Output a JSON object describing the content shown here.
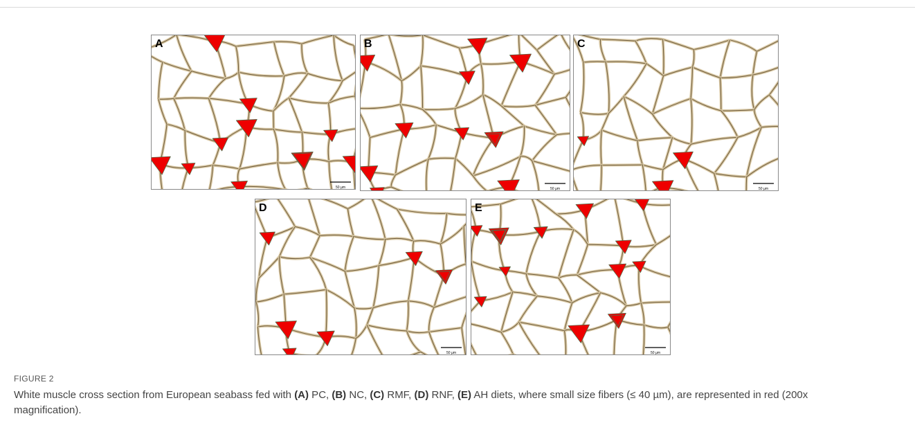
{
  "figure": {
    "panels": [
      {
        "label": "A",
        "scale": "50 µm"
      },
      {
        "label": "B",
        "scale": "50 µm"
      },
      {
        "label": "C",
        "scale": "50 µm"
      },
      {
        "label": "D",
        "scale": "50 µm"
      },
      {
        "label": "E",
        "scale": "50 µm"
      }
    ],
    "number": "FIGURE 2",
    "caption": [
      "White muscle cross section from European seabass fed with ",
      "(A)",
      " PC, ",
      "(B)",
      " NC, ",
      "(C)",
      " RMF, ",
      "(D)",
      " RNF, ",
      "(E)",
      " AH diets, where small size fibers (≤ 40 µm), are represented in red (200x magnification)."
    ]
  }
}
